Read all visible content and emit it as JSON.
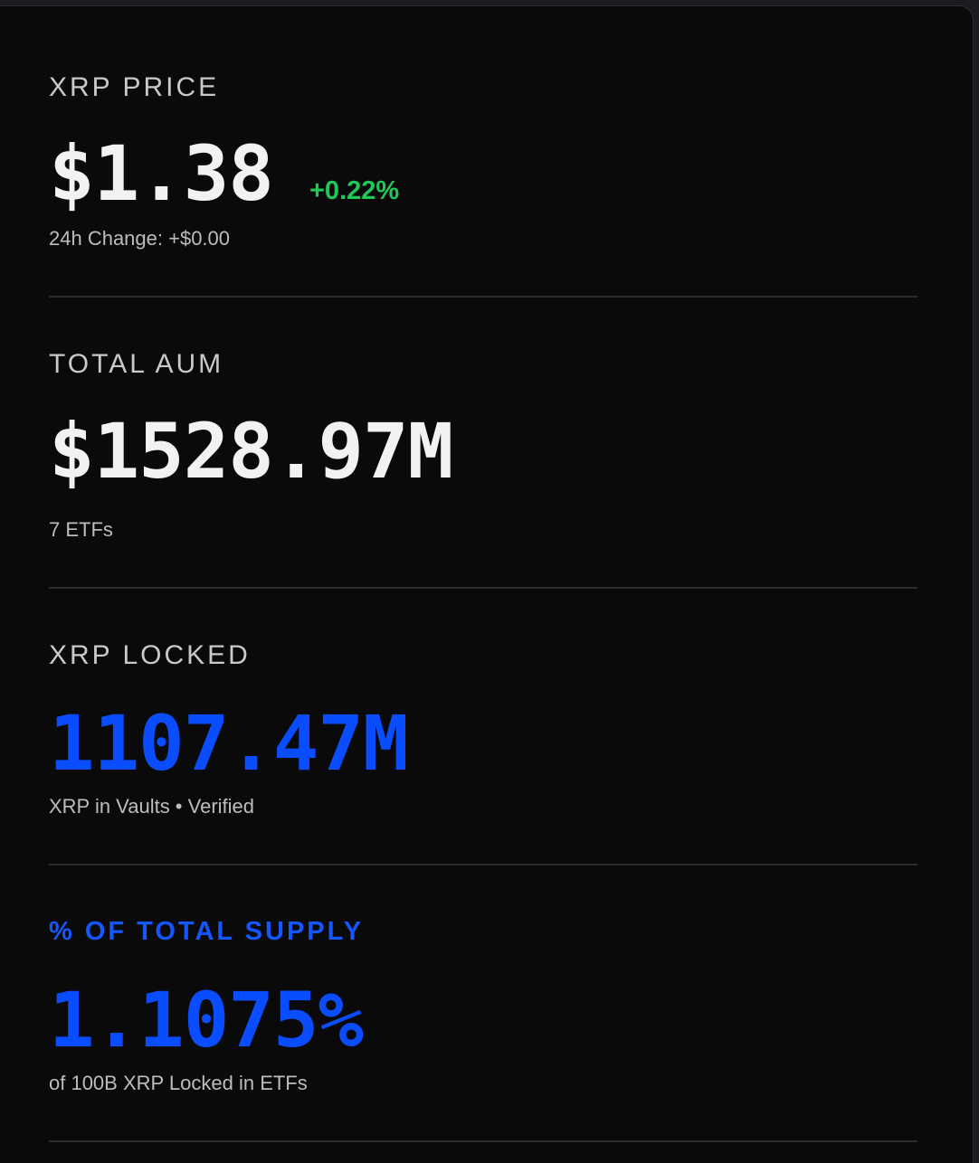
{
  "price": {
    "label": "XRP PRICE",
    "value": "$1.38",
    "change_pct": "+0.22%",
    "sub": "24h Change: +$0.00"
  },
  "aum": {
    "label": "TOTAL AUM",
    "value": "$1528.97M",
    "sub": "7 ETFs"
  },
  "locked": {
    "label": "XRP LOCKED",
    "value": "1107.47M",
    "sub": "XRP in Vaults • Verified"
  },
  "supply": {
    "label": "% OF TOTAL SUPPLY",
    "value": "1.1075%",
    "sub": "of 100B XRP Locked in ETFs"
  },
  "colors": {
    "background": "#0a0a0b",
    "accent_blue": "#0a4dff",
    "positive_green": "#20c85a",
    "text_primary": "#f2f2f2",
    "text_secondary": "#bdbdc0"
  }
}
